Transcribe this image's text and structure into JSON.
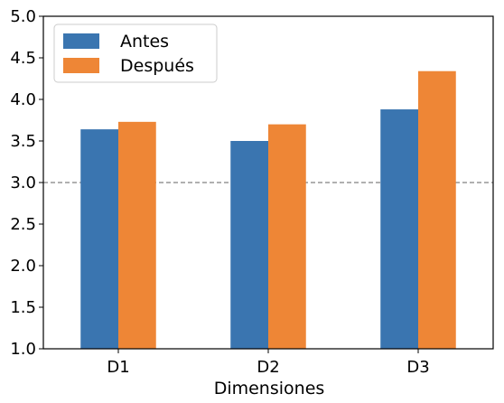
{
  "chart_data": {
    "type": "bar",
    "categories": [
      "D1",
      "D2",
      "D3"
    ],
    "series": [
      {
        "name": "Antes",
        "values": [
          3.64,
          3.5,
          3.88
        ],
        "color": "#3a75b0"
      },
      {
        "name": "Después",
        "values": [
          3.73,
          3.7,
          4.34
        ],
        "color": "#ee8636"
      }
    ],
    "xlabel": "Dimensiones",
    "ylabel": "",
    "ylim": [
      1.0,
      5.0
    ],
    "yticks": [
      "1.0",
      "1.5",
      "2.0",
      "2.5",
      "3.0",
      "3.5",
      "4.0",
      "4.5",
      "5.0"
    ],
    "reference_line": {
      "y": 3.0,
      "style": "dashed",
      "color": "#808080"
    },
    "grid": false,
    "legend_position": "top-left"
  }
}
